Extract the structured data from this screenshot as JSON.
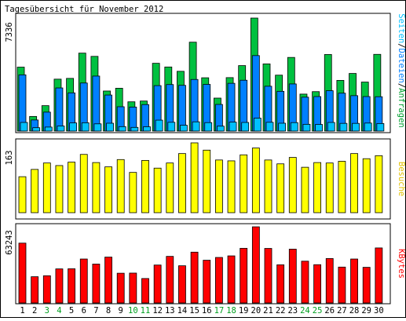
{
  "title": "Tagesübersicht für November 2012",
  "legend": {
    "seiten": "Seiten",
    "dateien": "Dateien",
    "anfragen": "Anfragen",
    "sep": "/",
    "besuche": "Besuche",
    "kbytes": "KBytes"
  },
  "colors": {
    "anfragen": "#00c040",
    "dateien": "#0080ff",
    "seiten": "#00c0ff",
    "besuche": "#ffff00",
    "kbytes": "#ff0000",
    "weekend_label": "#00a020",
    "weekday_label": "#000000"
  },
  "chart_data": [
    {
      "type": "bar",
      "panel": "hits",
      "ymax_label": "7336",
      "ylim": [
        0,
        7336
      ],
      "categories": [
        "1",
        "2",
        "3",
        "4",
        "5",
        "6",
        "7",
        "8",
        "9",
        "10",
        "11",
        "12",
        "13",
        "14",
        "15",
        "16",
        "17",
        "18",
        "19",
        "20",
        "21",
        "22",
        "23",
        "24",
        "25",
        "26",
        "27",
        "28",
        "29",
        "30"
      ],
      "weekend": [
        3,
        4,
        10,
        11,
        17,
        18,
        24,
        25
      ],
      "series": [
        {
          "name": "Anfragen",
          "values": [
            4150,
            950,
            1650,
            3370,
            3420,
            5060,
            4850,
            2600,
            2780,
            1900,
            1950,
            4400,
            4160,
            3880,
            5770,
            3460,
            2140,
            3470,
            4250,
            7336,
            4360,
            3630,
            4780,
            2400,
            2560,
            4970,
            3290,
            3740,
            3180,
            4980
          ]
        },
        {
          "name": "Dateien",
          "values": [
            3650,
            720,
            1230,
            2800,
            2480,
            3120,
            3570,
            2340,
            1580,
            1560,
            1720,
            2950,
            3020,
            2970,
            3350,
            3030,
            1730,
            3100,
            3300,
            4900,
            2910,
            2580,
            3060,
            2200,
            2240,
            2620,
            2460,
            2300,
            2240,
            2230
          ]
        },
        {
          "name": "Seiten",
          "values": [
            560,
            220,
            260,
            330,
            530,
            540,
            470,
            510,
            290,
            240,
            280,
            710,
            570,
            380,
            600,
            550,
            320,
            580,
            560,
            840,
            570,
            510,
            550,
            440,
            430,
            560,
            500,
            500,
            520,
            490
          ]
        }
      ]
    },
    {
      "type": "bar",
      "panel": "visits",
      "ymax_label": "163",
      "ylim": [
        0,
        163
      ],
      "categories": [
        "1",
        "2",
        "3",
        "4",
        "5",
        "6",
        "7",
        "8",
        "9",
        "10",
        "11",
        "12",
        "13",
        "14",
        "15",
        "16",
        "17",
        "18",
        "19",
        "20",
        "21",
        "22",
        "23",
        "24",
        "25",
        "26",
        "27",
        "28",
        "29",
        "30"
      ],
      "series": [
        {
          "name": "Besuche",
          "values": [
            84,
            101,
            116,
            110,
            118,
            136,
            117,
            107,
            124,
            94,
            122,
            104,
            116,
            138,
            163,
            146,
            123,
            121,
            135,
            151,
            123,
            114,
            129,
            106,
            117,
            116,
            120,
            138,
            126,
            133
          ]
        }
      ]
    },
    {
      "type": "bar",
      "panel": "kbytes",
      "ymax_label": "63243",
      "ylim": [
        0,
        63243
      ],
      "categories": [
        "1",
        "2",
        "3",
        "4",
        "5",
        "6",
        "7",
        "8",
        "9",
        "10",
        "11",
        "12",
        "13",
        "14",
        "15",
        "16",
        "17",
        "18",
        "19",
        "20",
        "21",
        "22",
        "23",
        "24",
        "25",
        "26",
        "27",
        "28",
        "29",
        "30"
      ],
      "series": [
        {
          "name": "KBytes",
          "values": [
            49700,
            21800,
            22600,
            28300,
            28400,
            36500,
            32300,
            38100,
            24700,
            24800,
            20300,
            31500,
            38700,
            30900,
            42200,
            35500,
            37800,
            39100,
            45400,
            63243,
            45300,
            31700,
            44700,
            34700,
            31800,
            36900,
            29800,
            36500,
            29600,
            45700
          ]
        }
      ]
    }
  ]
}
